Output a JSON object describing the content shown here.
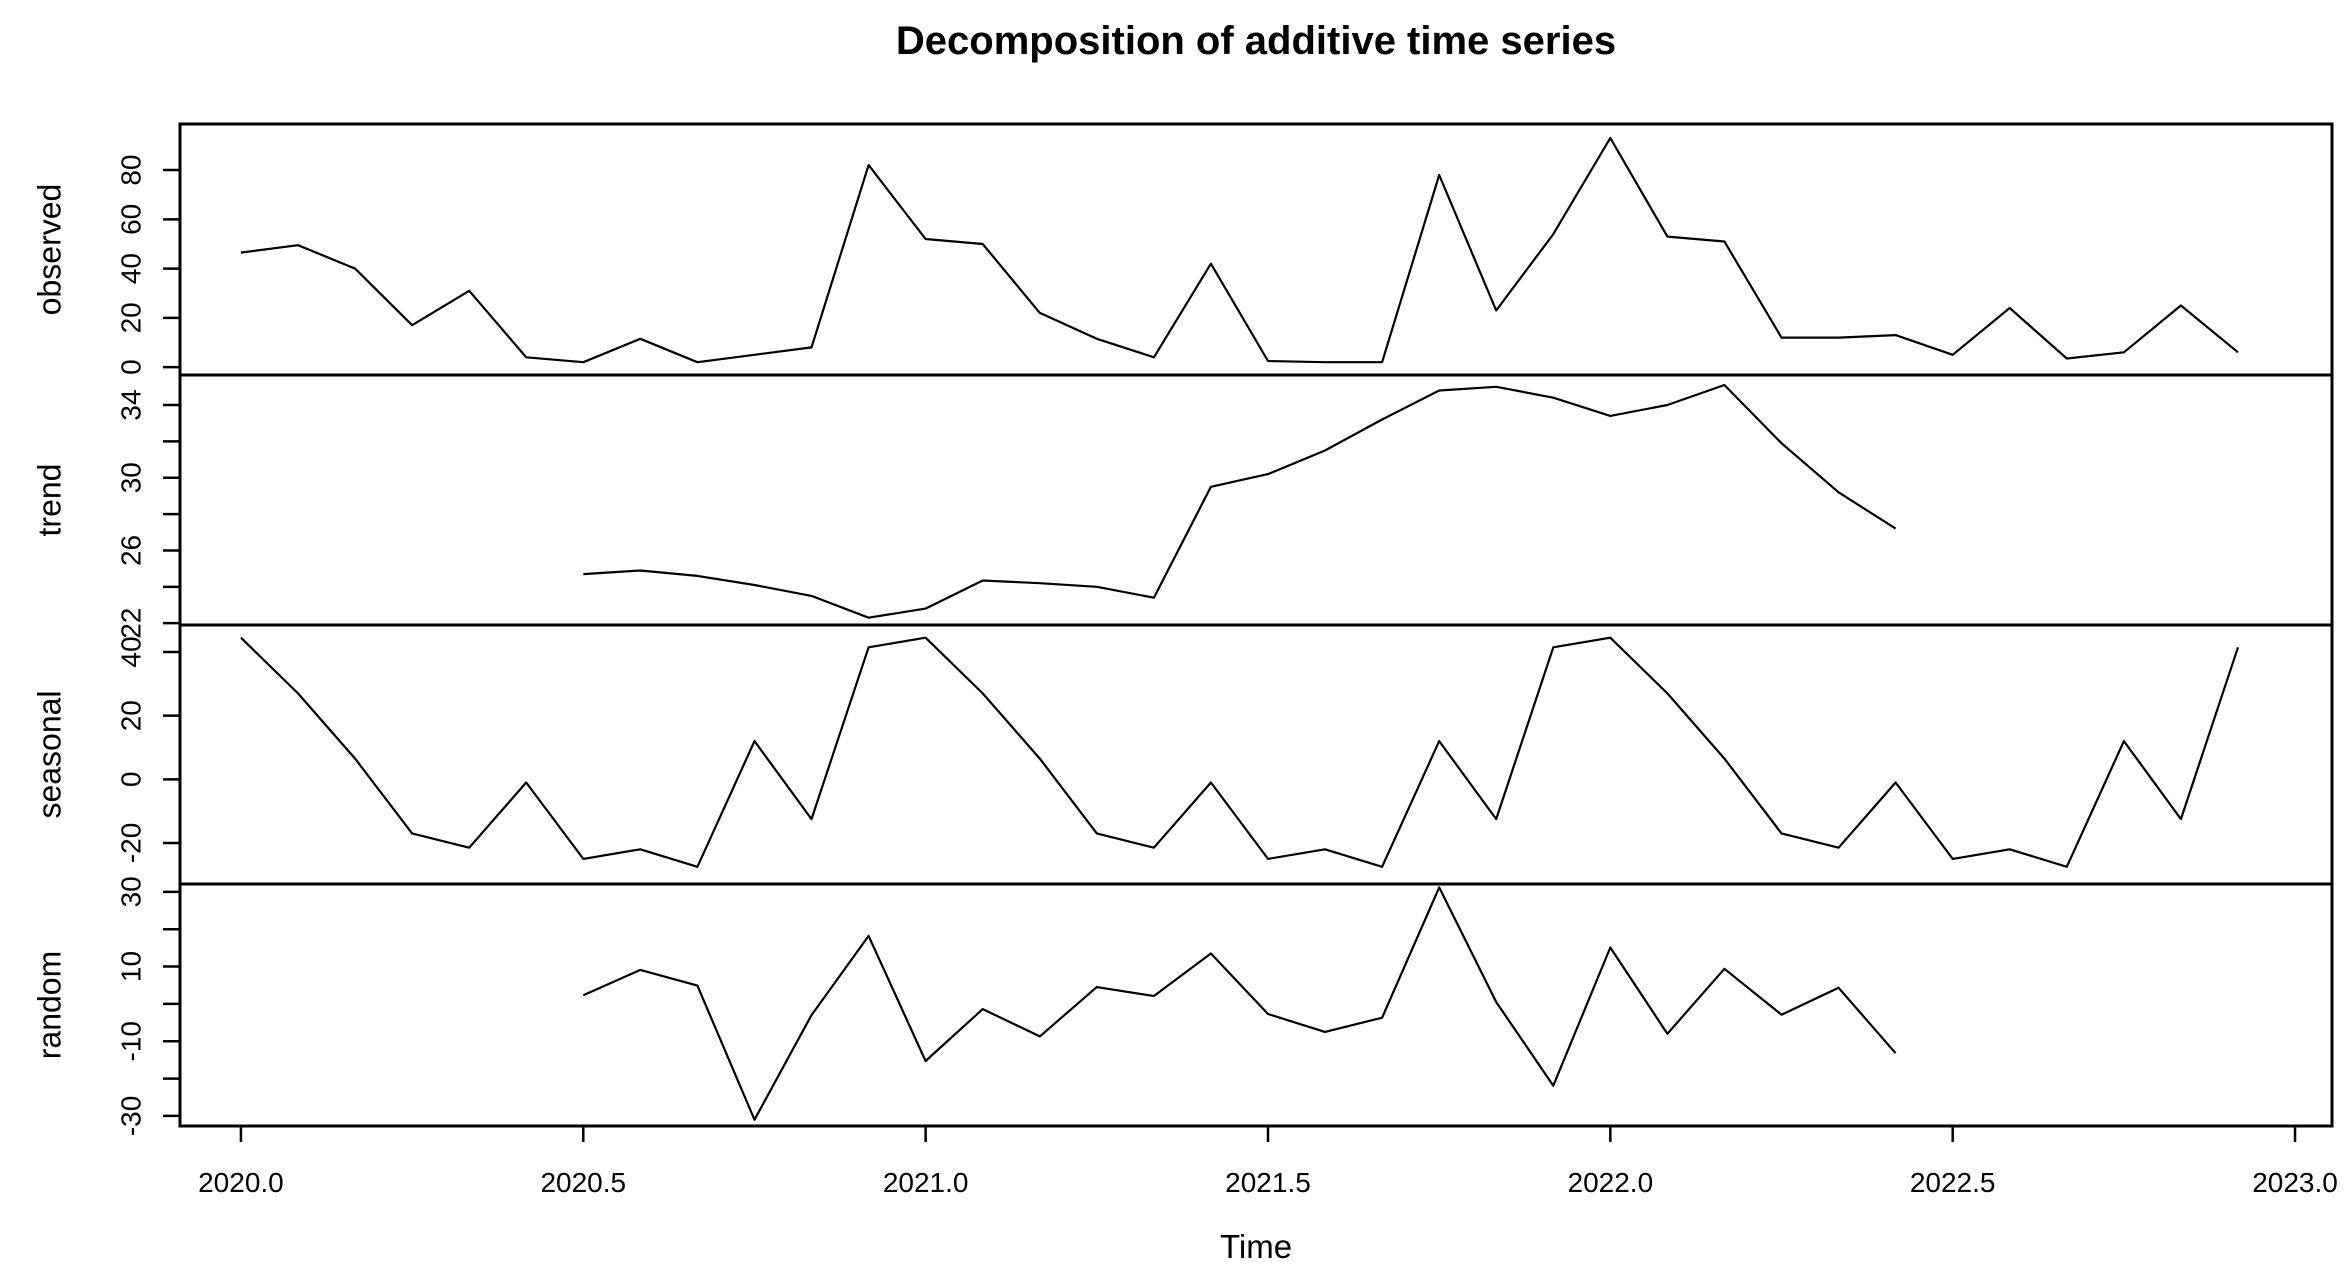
{
  "page": {
    "background_color": "#ffffff",
    "line_color": "#000000"
  },
  "chart_data": {
    "type": "line",
    "title": "Decomposition of additive time series",
    "xlabel": "Time",
    "x_start": 2020.0,
    "frequency": 12,
    "n_points": 36,
    "xlim": [
      2019.911,
      2023.054
    ],
    "grid": "off",
    "legend": "none",
    "xticks": [
      {
        "value": 2020.0,
        "label": "2020.0"
      },
      {
        "value": 2020.5,
        "label": "2020.5"
      },
      {
        "value": 2021.0,
        "label": "2021.0"
      },
      {
        "value": 2021.5,
        "label": "2021.5"
      },
      {
        "value": 2022.0,
        "label": "2022.0"
      },
      {
        "value": 2022.5,
        "label": "2022.5"
      },
      {
        "value": 2023.0,
        "label": "2023.0"
      }
    ],
    "panels": [
      {
        "name": "observed",
        "ylabel": "observed",
        "ylim": [
          -3.2,
          98.7
        ],
        "yticks_labeled": [
          0,
          20,
          40,
          60,
          80
        ],
        "yticks_minor": [],
        "values": [
          46.5,
          49.5,
          40,
          17,
          31,
          4,
          2,
          11.5,
          2,
          5,
          8,
          82,
          52,
          50,
          22,
          11.5,
          4,
          42,
          2.5,
          2,
          2,
          78,
          23,
          54,
          93,
          53,
          51,
          12,
          12,
          13,
          5,
          24,
          3.5,
          6,
          25,
          6
        ]
      },
      {
        "name": "trend",
        "ylabel": "trend",
        "ylim": [
          21.9,
          35.65
        ],
        "yticks_labeled": [
          22,
          26,
          30,
          34
        ],
        "yticks_minor": [
          24,
          28,
          32
        ],
        "values": [
          null,
          null,
          null,
          null,
          null,
          null,
          24.7,
          24.9,
          24.6,
          24.1,
          23.5,
          22.3,
          22.8,
          24.35,
          24.2,
          24.0,
          23.4,
          29.5,
          30.2,
          31.5,
          33.2,
          34.8,
          35.0,
          34.4,
          33.4,
          34.0,
          35.1,
          31.9,
          29.2,
          27.2,
          null,
          null,
          null,
          null,
          null,
          null
        ]
      },
      {
        "name": "seasonal",
        "ylabel": "seasonal",
        "ylim": [
          -32.9,
          48.5
        ],
        "yticks_labeled": [
          -20,
          0,
          20,
          40
        ],
        "yticks_minor": [],
        "values": [
          44.5,
          27,
          6.5,
          -17,
          -21.5,
          -1,
          -25,
          -22,
          -27.5,
          12,
          -12.5,
          41.5,
          44.5,
          27,
          6.5,
          -17,
          -21.5,
          -1,
          -25,
          -22,
          -27.5,
          12,
          -12.5,
          41.5,
          44.5,
          27,
          6.5,
          -17,
          -21.5,
          -1,
          -25,
          -22,
          -27.5,
          12,
          -12.5,
          41.5
        ]
      },
      {
        "name": "random",
        "ylabel": "random",
        "ylim": [
          -32.7,
          32.1
        ],
        "yticks_labeled": [
          -30,
          -10,
          10,
          30
        ],
        "yticks_minor": [
          -20,
          0,
          20
        ],
        "values": [
          null,
          null,
          null,
          null,
          null,
          null,
          2.3,
          9.1,
          4.9,
          -31,
          -3,
          18.2,
          -15.3,
          -1.4,
          -8.7,
          4.5,
          2.1,
          13.5,
          -2.7,
          -7.5,
          -3.7,
          31.2,
          0.5,
          -21.9,
          15.1,
          -8,
          9.4,
          -2.9,
          4.3,
          -13.2,
          null,
          null,
          null,
          null,
          null,
          null
        ]
      }
    ]
  }
}
